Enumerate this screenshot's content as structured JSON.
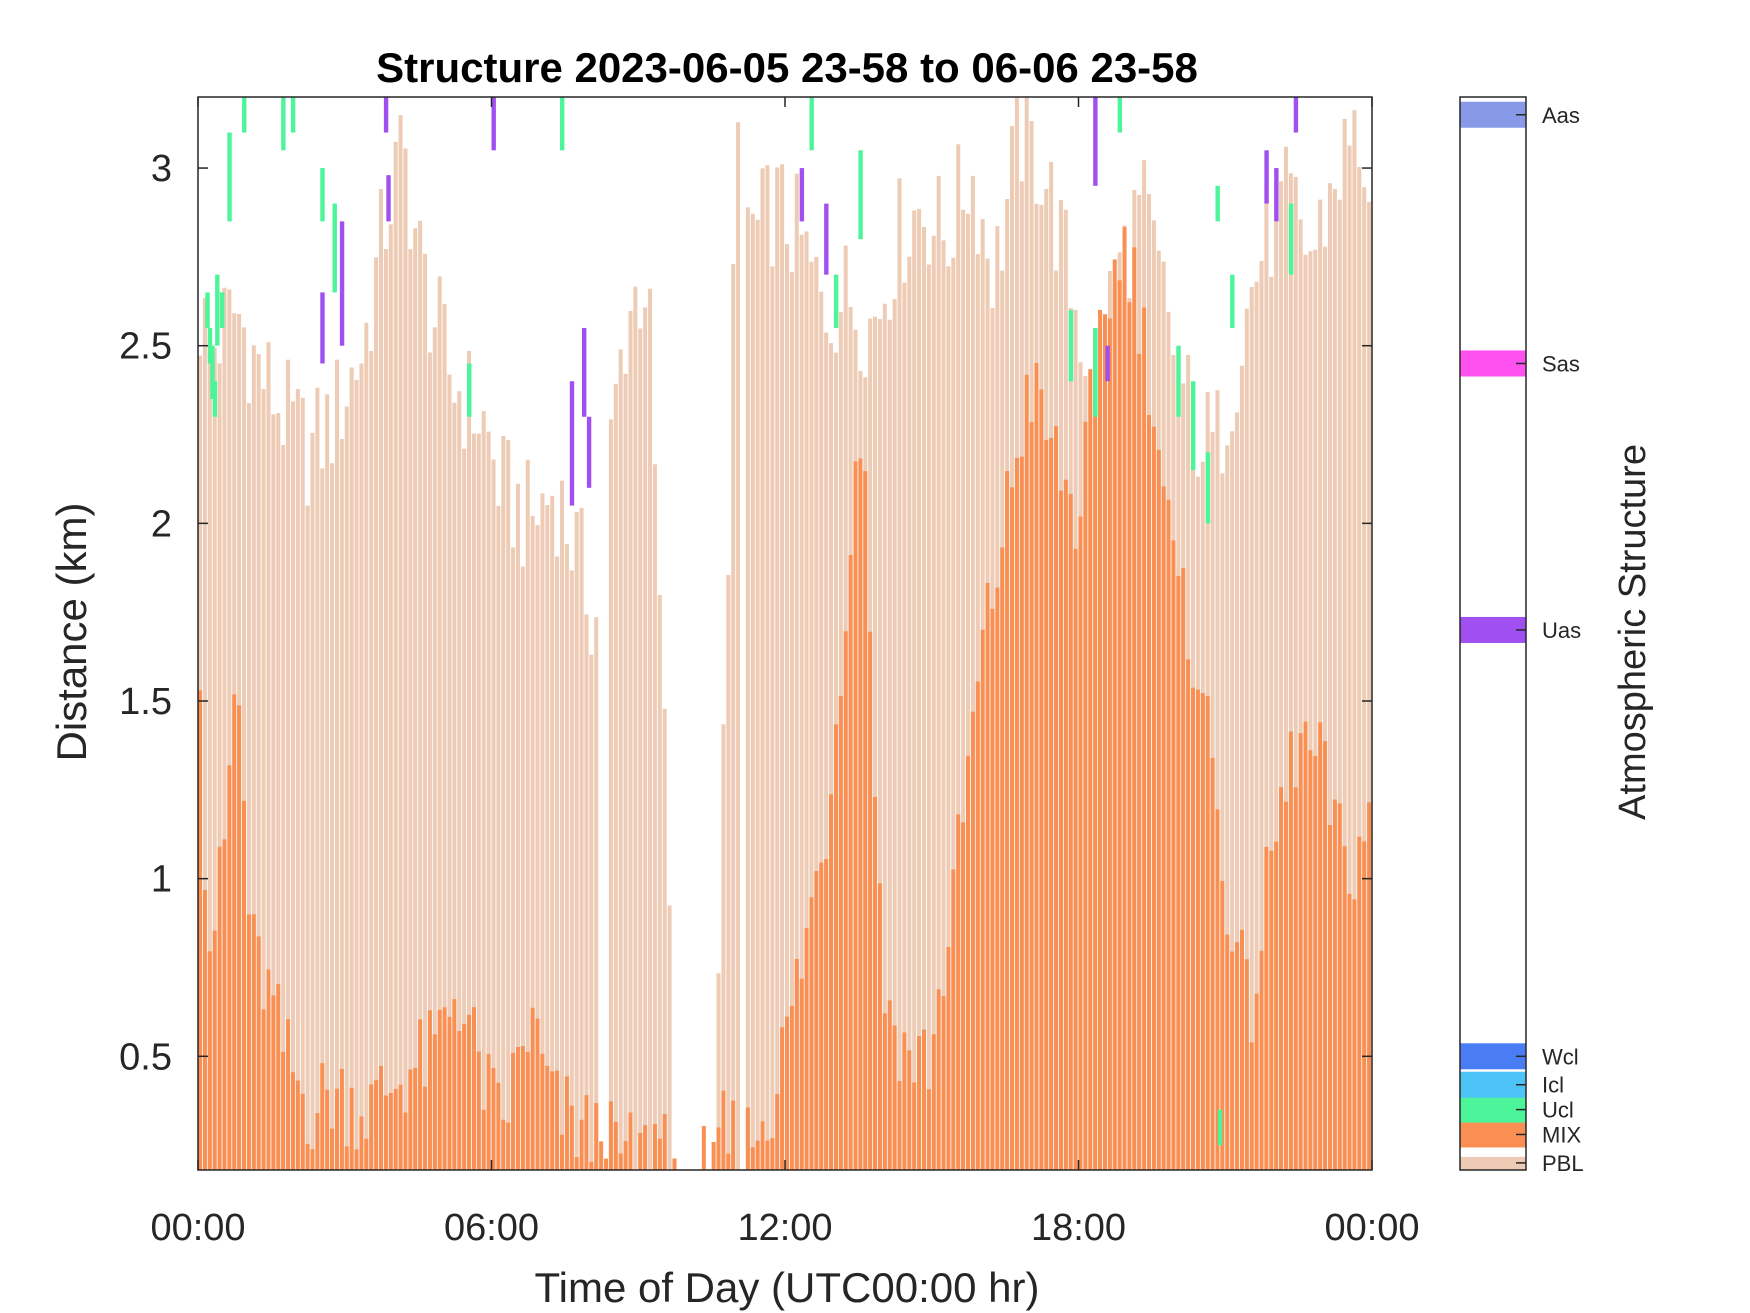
{
  "chart_data": {
    "type": "bar",
    "title": "Structure 2023-06-05 23-58 to 06-06 23-58",
    "xlabel": "Time of Day (UTC00:00 hr)",
    "ylabel": "Distance (km)",
    "xlim": [
      0,
      24
    ],
    "ylim": [
      0.18,
      3.2
    ],
    "xticks": [
      0,
      6,
      12,
      18,
      24
    ],
    "xticklabels": [
      "00:00",
      "06:00",
      "12:00",
      "18:00",
      "00:00"
    ],
    "yticks": [
      0.5,
      1,
      1.5,
      2,
      2.5,
      3
    ],
    "yticklabels": [
      "0.5",
      "1",
      "1.5",
      "2",
      "2.5",
      "3"
    ],
    "interval_hours": 0.1,
    "colorbar": {
      "label": "Atmospheric Structure",
      "categories": [
        {
          "name": "PBL",
          "color": "#EECBB5"
        },
        {
          "name": "MIX",
          "color": "#F98F52"
        },
        {
          "name": "Ucl",
          "color": "#4CF59A"
        },
        {
          "name": "Icl",
          "color": "#4DC3F8"
        },
        {
          "name": "Wcl",
          "color": "#4A7CF4"
        },
        {
          "name": "Uas",
          "color": "#A050F0"
        },
        {
          "name": "Sas",
          "color": "#FF50F0"
        },
        {
          "name": "Aas",
          "color": "#8899E8"
        }
      ],
      "positions": [
        0.2,
        0.28,
        0.35,
        0.42,
        0.5,
        1.7,
        2.45,
        3.15
      ],
      "ylim": [
        0.18,
        3.2
      ]
    },
    "series": [
      {
        "name": "PBL",
        "color": "#EECBB5",
        "keypoints_t": [
          0,
          0.3,
          0.8,
          1.2,
          1.8,
          2.3,
          2.8,
          3.4,
          3.9,
          4.2,
          4.6,
          5.2,
          5.8,
          6.2,
          6.8,
          7.3,
          7.8,
          8.2,
          8.5,
          8.8,
          9.2,
          9.8,
          10.2,
          10.6,
          11.0,
          11.4,
          11.8,
          12.3,
          12.8,
          13.3,
          13.8,
          14.3,
          14.8,
          15.3,
          15.8,
          16.3,
          16.8,
          17.3,
          17.8,
          18.3,
          18.8,
          19.3,
          19.8,
          20.3,
          20.8,
          21.3,
          21.8,
          22.3,
          22.8,
          23.3,
          23.8,
          24.0
        ],
        "keypoints_v": [
          2.6,
          2.5,
          2.6,
          2.45,
          2.3,
          2.2,
          2.3,
          2.5,
          2.9,
          3.05,
          2.7,
          2.4,
          2.3,
          2.1,
          2.0,
          2.1,
          1.9,
          1.7,
          2.3,
          2.6,
          2.7,
          0.4,
          0.4,
          0.35,
          3.0,
          2.8,
          2.9,
          2.8,
          2.6,
          2.65,
          2.55,
          2.8,
          2.9,
          2.8,
          3.0,
          2.7,
          3.1,
          3.0,
          2.7,
          2.4,
          2.7,
          2.9,
          2.6,
          2.3,
          2.2,
          2.5,
          2.8,
          2.9,
          2.75,
          3.0,
          3.1,
          2.8
        ],
        "gap_ranges": [
          [
            9.7,
            10.65
          ],
          [
            8.2,
            8.45
          ],
          [
            11.1,
            11.25
          ]
        ]
      },
      {
        "name": "MIX",
        "color": "#F98F52",
        "keypoints_t": [
          0,
          0.2,
          0.5,
          0.8,
          1.1,
          1.4,
          1.8,
          2.3,
          2.8,
          3.5,
          4.2,
          4.8,
          5.3,
          5.8,
          6.2,
          6.8,
          7.3,
          7.8,
          8.3,
          9.0,
          9.8,
          10.4,
          11.2,
          11.8,
          12.4,
          12.9,
          13.3,
          13.6,
          14.0,
          14.5,
          15.0,
          15.5,
          16.0,
          16.5,
          17.0,
          17.5,
          18.0,
          18.5,
          19.0,
          19.5,
          20.0,
          20.5,
          21.0,
          21.5,
          22.0,
          22.5,
          23.0,
          23.5,
          24.0
        ],
        "keypoints_v": [
          1.95,
          0.8,
          1.0,
          1.6,
          0.8,
          0.7,
          0.5,
          0.35,
          0.4,
          0.35,
          0.45,
          0.5,
          0.7,
          0.45,
          0.3,
          0.6,
          0.35,
          0.3,
          0.25,
          0.2,
          0.35,
          0.3,
          0.25,
          0.4,
          0.8,
          1.2,
          1.9,
          2.35,
          0.7,
          0.5,
          0.5,
          1.0,
          1.6,
          2.0,
          2.4,
          2.2,
          2.0,
          2.6,
          2.8,
          2.4,
          1.8,
          1.6,
          1.0,
          0.6,
          1.1,
          1.4,
          1.3,
          1.0,
          1.2
        ],
        "gap_ranges": [
          [
            9.7,
            10.65
          ],
          [
            8.2,
            8.45
          ]
        ]
      }
    ],
    "cloud_segments": [
      {
        "type": "Ucl",
        "t": 0.15,
        "y0": 2.55,
        "y1": 2.65
      },
      {
        "type": "Ucl",
        "t": 0.2,
        "y0": 2.45,
        "y1": 2.55
      },
      {
        "type": "Ucl",
        "t": 0.25,
        "y0": 2.35,
        "y1": 2.5
      },
      {
        "type": "Ucl",
        "t": 0.3,
        "y0": 2.3,
        "y1": 2.4
      },
      {
        "type": "Ucl",
        "t": 0.35,
        "y0": 2.5,
        "y1": 2.7
      },
      {
        "type": "Ucl",
        "t": 0.45,
        "y0": 2.55,
        "y1": 2.65
      },
      {
        "type": "Ucl",
        "t": 0.6,
        "y0": 2.85,
        "y1": 3.1
      },
      {
        "type": "Ucl",
        "t": 0.9,
        "y0": 3.1,
        "y1": 3.2
      },
      {
        "type": "Ucl",
        "t": 1.7,
        "y0": 3.05,
        "y1": 3.2
      },
      {
        "type": "Ucl",
        "t": 1.9,
        "y0": 3.1,
        "y1": 3.2
      },
      {
        "type": "Ucl",
        "t": 2.5,
        "y0": 2.85,
        "y1": 3.0
      },
      {
        "type": "Ucl",
        "t": 2.75,
        "y0": 2.65,
        "y1": 2.9
      },
      {
        "type": "Ucl",
        "t": 5.5,
        "y0": 2.3,
        "y1": 2.45
      },
      {
        "type": "Ucl",
        "t": 7.4,
        "y0": 3.05,
        "y1": 3.2
      },
      {
        "type": "Ucl",
        "t": 12.5,
        "y0": 3.05,
        "y1": 3.2
      },
      {
        "type": "Ucl",
        "t": 13.0,
        "y0": 2.55,
        "y1": 2.7
      },
      {
        "type": "Ucl",
        "t": 13.5,
        "y0": 2.8,
        "y1": 3.05
      },
      {
        "type": "Ucl",
        "t": 17.8,
        "y0": 2.4,
        "y1": 2.6
      },
      {
        "type": "Ucl",
        "t": 18.3,
        "y0": 2.3,
        "y1": 2.55
      },
      {
        "type": "Ucl",
        "t": 18.8,
        "y0": 3.1,
        "y1": 3.2
      },
      {
        "type": "Ucl",
        "t": 20.0,
        "y0": 2.3,
        "y1": 2.5
      },
      {
        "type": "Ucl",
        "t": 20.3,
        "y0": 2.15,
        "y1": 2.4
      },
      {
        "type": "Ucl",
        "t": 20.6,
        "y0": 2.0,
        "y1": 2.2
      },
      {
        "type": "Ucl",
        "t": 20.8,
        "y0": 2.85,
        "y1": 2.95
      },
      {
        "type": "Ucl",
        "t": 21.1,
        "y0": 2.55,
        "y1": 2.7
      },
      {
        "type": "Ucl",
        "t": 22.3,
        "y0": 2.7,
        "y1": 2.9
      },
      {
        "type": "Ucl",
        "t": 20.85,
        "y0": 0.25,
        "y1": 0.35
      },
      {
        "type": "Uas",
        "t": 2.5,
        "y0": 2.45,
        "y1": 2.65
      },
      {
        "type": "Uas",
        "t": 2.9,
        "y0": 2.5,
        "y1": 2.85
      },
      {
        "type": "Uas",
        "t": 3.8,
        "y0": 3.1,
        "y1": 3.2
      },
      {
        "type": "Uas",
        "t": 3.85,
        "y0": 2.85,
        "y1": 2.98
      },
      {
        "type": "Uas",
        "t": 6.0,
        "y0": 3.05,
        "y1": 3.2
      },
      {
        "type": "Uas",
        "t": 7.6,
        "y0": 2.05,
        "y1": 2.4
      },
      {
        "type": "Uas",
        "t": 7.85,
        "y0": 2.3,
        "y1": 2.55
      },
      {
        "type": "Uas",
        "t": 7.95,
        "y0": 2.1,
        "y1": 2.3
      },
      {
        "type": "Uas",
        "t": 12.3,
        "y0": 2.85,
        "y1": 3.0
      },
      {
        "type": "Uas",
        "t": 12.8,
        "y0": 2.7,
        "y1": 2.9
      },
      {
        "type": "Uas",
        "t": 18.3,
        "y0": 2.95,
        "y1": 3.2
      },
      {
        "type": "Uas",
        "t": 18.55,
        "y0": 2.4,
        "y1": 2.5
      },
      {
        "type": "Uas",
        "t": 21.8,
        "y0": 2.9,
        "y1": 3.05
      },
      {
        "type": "Uas",
        "t": 22.0,
        "y0": 2.85,
        "y1": 3.0
      },
      {
        "type": "Uas",
        "t": 22.4,
        "y0": 3.1,
        "y1": 3.2
      }
    ]
  }
}
